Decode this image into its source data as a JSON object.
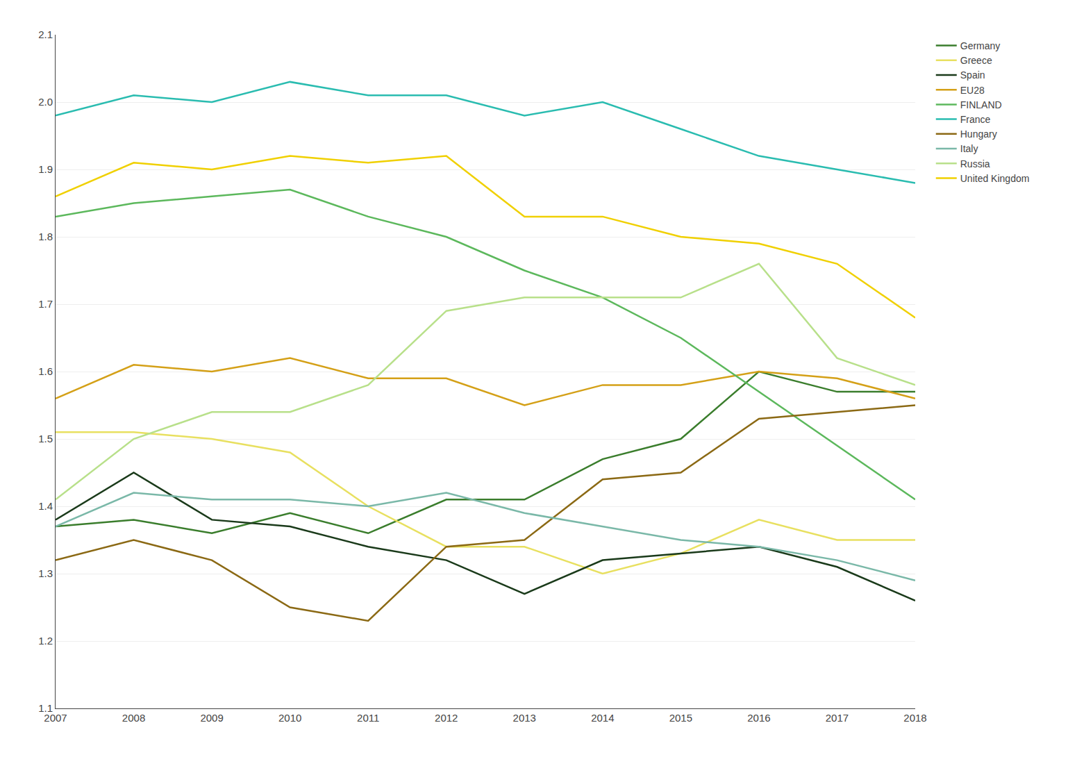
{
  "chart_data": {
    "type": "line",
    "x": [
      2007,
      2008,
      2009,
      2010,
      2011,
      2012,
      2013,
      2014,
      2015,
      2016,
      2017,
      2018
    ],
    "series": [
      {
        "name": "Germany",
        "color": "#3a7d2c",
        "values": [
          1.37,
          1.38,
          1.36,
          1.39,
          1.36,
          1.41,
          1.41,
          1.47,
          1.5,
          1.6,
          1.57,
          1.57
        ]
      },
      {
        "name": "Greece",
        "color": "#e8e060",
        "values": [
          1.51,
          1.51,
          1.5,
          1.48,
          1.4,
          1.34,
          1.34,
          1.3,
          1.33,
          1.38,
          1.35,
          1.35
        ]
      },
      {
        "name": "Spain",
        "color": "#1a3a1a",
        "values": [
          1.38,
          1.45,
          1.38,
          1.37,
          1.34,
          1.32,
          1.27,
          1.32,
          1.33,
          1.34,
          1.31,
          1.26
        ]
      },
      {
        "name": "EU28",
        "color": "#d4a017",
        "values": [
          1.56,
          1.61,
          1.6,
          1.62,
          1.59,
          1.59,
          1.55,
          1.58,
          1.58,
          1.6,
          1.59,
          1.56
        ]
      },
      {
        "name": "FINLAND",
        "color": "#5cb85c",
        "values": [
          1.83,
          1.85,
          1.86,
          1.87,
          1.83,
          1.8,
          1.75,
          1.71,
          1.65,
          1.57,
          1.49,
          1.41
        ]
      },
      {
        "name": "France",
        "color": "#2abcb0",
        "values": [
          1.98,
          2.01,
          2.0,
          2.03,
          2.01,
          2.01,
          1.98,
          2.0,
          1.96,
          1.92,
          1.9,
          1.88
        ]
      },
      {
        "name": "Hungary",
        "color": "#8B6914",
        "values": [
          1.32,
          1.35,
          1.32,
          1.25,
          1.23,
          1.34,
          1.35,
          1.44,
          1.45,
          1.53,
          1.54,
          1.55
        ]
      },
      {
        "name": "Italy",
        "color": "#7ab8a8",
        "values": [
          1.37,
          1.42,
          1.41,
          1.41,
          1.4,
          1.42,
          1.39,
          1.37,
          1.35,
          1.34,
          1.32,
          1.29
        ]
      },
      {
        "name": "Russia",
        "color": "#b8e08a",
        "values": [
          1.41,
          1.5,
          1.54,
          1.54,
          1.58,
          1.69,
          1.71,
          1.71,
          1.71,
          1.76,
          1.62,
          1.58
        ]
      },
      {
        "name": "United Kingdom",
        "color": "#f0d000",
        "values": [
          1.86,
          1.91,
          1.9,
          1.92,
          1.91,
          1.92,
          1.83,
          1.83,
          1.8,
          1.79,
          1.76,
          1.68
        ]
      }
    ],
    "xlim": [
      2007,
      2018
    ],
    "xticks": [
      2007,
      2008,
      2009,
      2010,
      2011,
      2012,
      2013,
      2014,
      2015,
      2016,
      2017,
      2018
    ],
    "ylim": [
      1.1,
      2.1
    ],
    "yticks": [
      1.1,
      1.2,
      1.3,
      1.4,
      1.5,
      1.6,
      1.7,
      1.8,
      1.9,
      {
        "value": 2.0,
        "label": "2.0"
      },
      2.1
    ],
    "grid": "y",
    "legend": "right"
  }
}
